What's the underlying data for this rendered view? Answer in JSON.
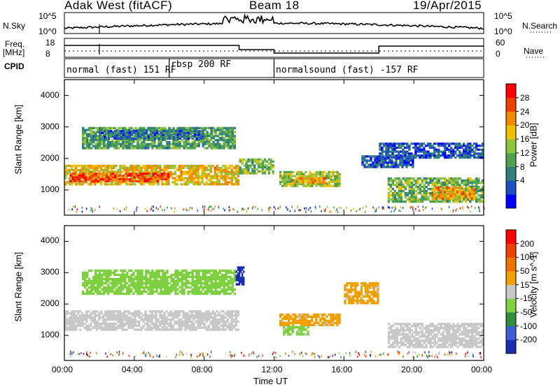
{
  "header": {
    "station": "Adak West (fitACF)",
    "beam": "Beam 18",
    "date": "19/Apr/2015"
  },
  "top_panels": {
    "nsky_label": "N.Sky",
    "nsky_ticks": [
      "10^5",
      "10^0"
    ],
    "nsearch_label": "N.Search",
    "nsearch_ticks": [
      "10^5",
      "10^0"
    ],
    "freq_label": "Freq.",
    "freq_unit": "[MHz]",
    "freq_ticks": [
      "18",
      "8"
    ],
    "nave_label": "Nave",
    "nave_ticks": [
      "60",
      "0"
    ],
    "cpid_label": "CPID",
    "cpid_segments": [
      {
        "label": "normal (fast) 151 RF",
        "start_h": 0,
        "end_h": 6
      },
      {
        "label": "rbsp 200 RF",
        "start_h": 6,
        "end_h": 12
      },
      {
        "label": "normalsound (fast) -157 RF",
        "start_h": 12,
        "end_h": 24
      }
    ]
  },
  "chart_data": [
    {
      "type": "heatmap",
      "title": "",
      "xlabel": "",
      "ylabel": "Slant Range [km]",
      "xlim": [
        0,
        24
      ],
      "ylim": [
        200,
        4500
      ],
      "yticks": [
        "4000",
        "3000",
        "2000",
        "1000"
      ],
      "colorbar": {
        "label": "Power [dB]",
        "ticks": [
          "28",
          "24",
          "20",
          "16",
          "12",
          "8",
          "4"
        ],
        "colors": [
          "#0000ff",
          "#1d4fbf",
          "#2f7f7f",
          "#4fa04f",
          "#8fc43f",
          "#f0c000",
          "#f08a00",
          "#f04000",
          "#ff0000"
        ]
      },
      "features": [
        {
          "t0": 0.0,
          "t1": 10.0,
          "r0": 1150,
          "r1": 1800,
          "value": 20
        },
        {
          "t0": 0.3,
          "t1": 6.0,
          "r0": 1250,
          "r1": 1550,
          "value": 26
        },
        {
          "t0": 1.0,
          "t1": 9.8,
          "r0": 2300,
          "r1": 3000,
          "value": 12
        },
        {
          "t0": 2.0,
          "t1": 8.0,
          "r0": 2600,
          "r1": 2900,
          "value": 8
        },
        {
          "t0": 10.0,
          "t1": 12.0,
          "r0": 1500,
          "r1": 2000,
          "value": 14
        },
        {
          "t0": 12.3,
          "t1": 15.8,
          "r0": 1100,
          "r1": 1600,
          "value": 16
        },
        {
          "t0": 13.0,
          "t1": 15.0,
          "r0": 1200,
          "r1": 1400,
          "value": 22
        },
        {
          "t0": 17.0,
          "t1": 20.0,
          "r0": 1700,
          "r1": 2100,
          "value": 6
        },
        {
          "t0": 18.5,
          "t1": 24.0,
          "r0": 600,
          "r1": 1400,
          "value": 14
        },
        {
          "t0": 21.0,
          "t1": 23.5,
          "r0": 700,
          "r1": 1100,
          "value": 22
        },
        {
          "t0": 18.0,
          "t1": 24.0,
          "r0": 2000,
          "r1": 2500,
          "value": 6
        }
      ]
    },
    {
      "type": "heatmap",
      "title": "",
      "xlabel": "Time UT",
      "ylabel": "Slant Range [km]",
      "xlim": [
        0,
        24
      ],
      "ylim": [
        200,
        4500
      ],
      "yticks": [
        "4000",
        "3000",
        "2000",
        "1000"
      ],
      "xticks": [
        "00:00",
        "04:00",
        "08:00",
        "12:00",
        "16:00",
        "20:00",
        "00:00"
      ],
      "colorbar": {
        "label": "Velocity [m s^-1]",
        "ticks": [
          "200",
          "100",
          "50",
          "15",
          "-15",
          "-50",
          "-100",
          "-200"
        ],
        "colors": [
          "#1a2fb0",
          "#3c5ed8",
          "#2f8f3f",
          "#7fd040",
          "#c8c8c8",
          "#f0a000",
          "#f07000",
          "#f04000",
          "#ff0000"
        ]
      },
      "features": [
        {
          "t0": 0.0,
          "t1": 10.0,
          "r0": 1150,
          "r1": 1800,
          "value": 0
        },
        {
          "t0": 1.0,
          "t1": 9.8,
          "r0": 2300,
          "r1": 3100,
          "value": -60
        },
        {
          "t0": 9.8,
          "t1": 10.3,
          "r0": 2600,
          "r1": 3200,
          "value": -250
        },
        {
          "t0": 12.3,
          "t1": 15.8,
          "r0": 1300,
          "r1": 1700,
          "value": 40
        },
        {
          "t0": 12.5,
          "t1": 14.0,
          "r0": 1000,
          "r1": 1300,
          "value": -40
        },
        {
          "t0": 18.5,
          "t1": 24.0,
          "r0": 600,
          "r1": 1400,
          "value": 0
        },
        {
          "t0": 16.0,
          "t1": 18.0,
          "r0": 2000,
          "r1": 2700,
          "value": 40
        }
      ]
    }
  ]
}
